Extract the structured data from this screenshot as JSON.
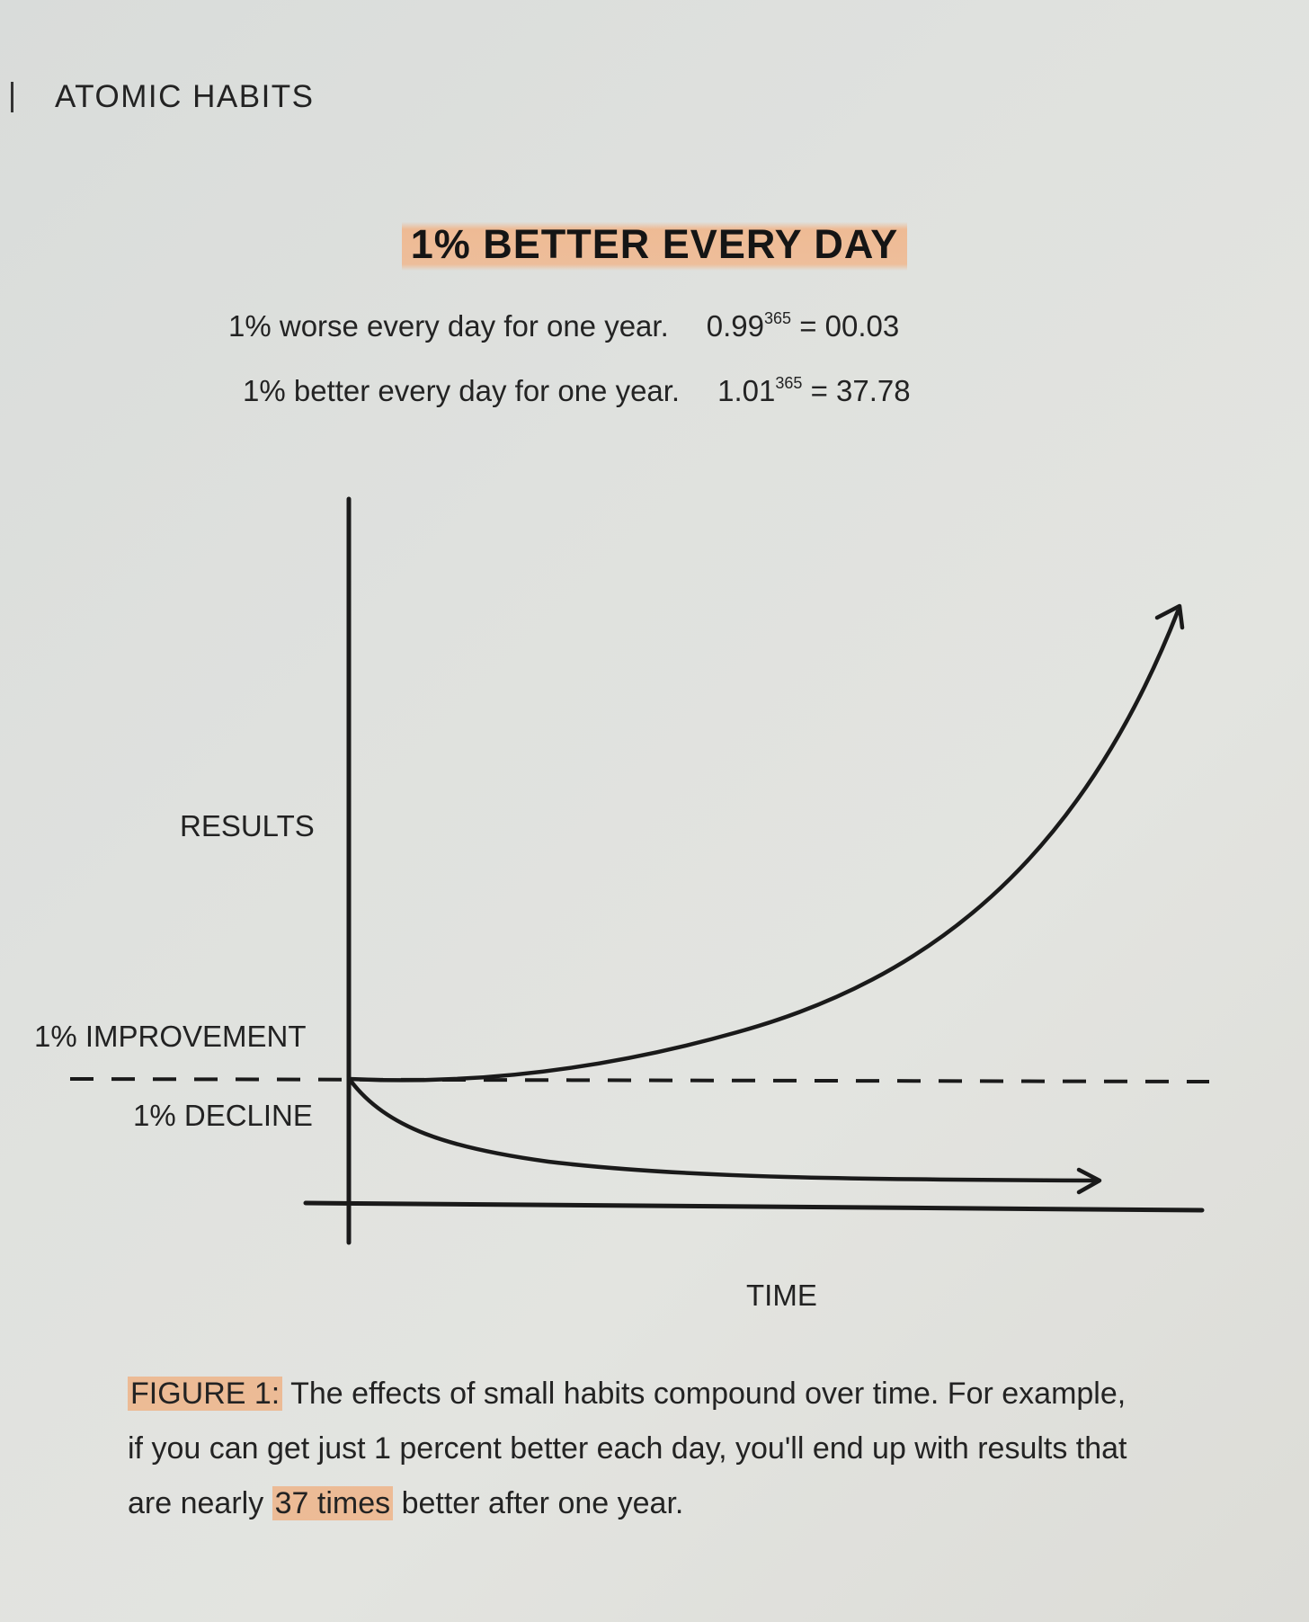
{
  "running_head": "ATOMIC HABITS",
  "title": "1% BETTER EVERY DAY",
  "equations": [
    {
      "text": "1% worse every day for one year.",
      "base": "0.99",
      "exponent": "365",
      "result": "= 00.03"
    },
    {
      "text": "1% better every day for one year.",
      "base": "1.01",
      "exponent": "365",
      "result": "= 37.78"
    }
  ],
  "diagram": {
    "y_axis_label": "RESULTS",
    "x_axis_label": "TIME",
    "baseline_upper_label": "1% IMPROVEMENT",
    "baseline_lower_label": "1% DECLINE"
  },
  "caption": {
    "figure_label": "FIGURE 1:",
    "text_before_highlight": "The effects of small habits compound over time. For example, if you can get just 1 percent better each day, you'll end up with results that are nearly ",
    "highlight": "37 times",
    "text_after_highlight": " better after one year."
  },
  "colors": {
    "highlight": "#f3a064",
    "ink": "#1a1a1a",
    "paper": "#dfe1de"
  }
}
